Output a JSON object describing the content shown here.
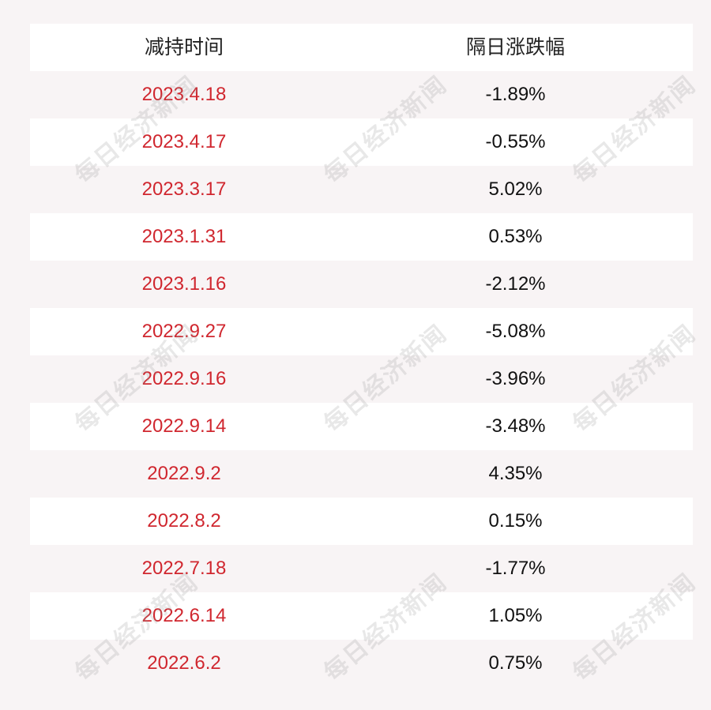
{
  "table": {
    "headers": [
      "减持时间",
      "隔日涨跌幅"
    ],
    "rows": [
      {
        "date": "2023.4.18",
        "change": "-1.89%"
      },
      {
        "date": "2023.4.17",
        "change": "-0.55%"
      },
      {
        "date": "2023.3.17",
        "change": "5.02%"
      },
      {
        "date": "2023.1.31",
        "change": "0.53%"
      },
      {
        "date": "2023.1.16",
        "change": "-2.12%"
      },
      {
        "date": "2022.9.27",
        "change": "-5.08%"
      },
      {
        "date": "2022.9.16",
        "change": "-3.96%"
      },
      {
        "date": "2022.9.14",
        "change": "-3.48%"
      },
      {
        "date": "2022.9.2",
        "change": "4.35%"
      },
      {
        "date": "2022.8.2",
        "change": "0.15%"
      },
      {
        "date": "2022.7.18",
        "change": "-1.77%"
      },
      {
        "date": "2022.6.14",
        "change": "1.05%"
      },
      {
        "date": "2022.6.2",
        "change": "0.75%"
      }
    ]
  },
  "watermark": {
    "text": "每日经济新闻"
  },
  "colors": {
    "date_text": "#d0272f",
    "value_text": "#111111",
    "row_light": "#ffffff",
    "row_shade": "#f8f4f5"
  }
}
